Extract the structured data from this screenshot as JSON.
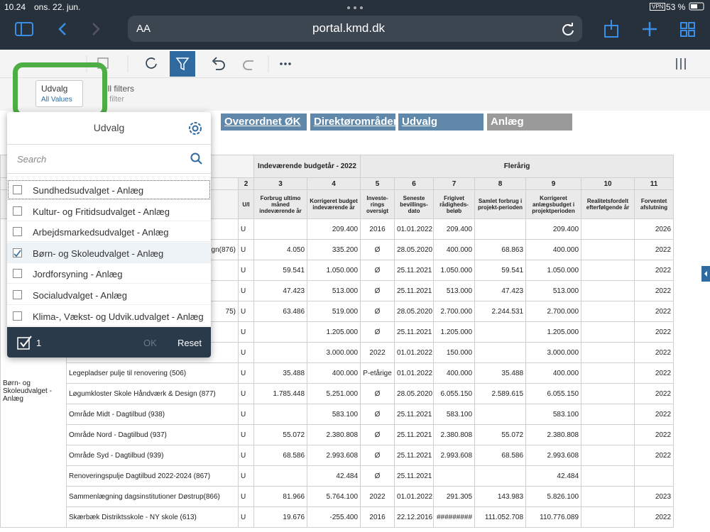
{
  "status": {
    "time": "10.24",
    "date": "ons. 22. jun.",
    "vpn": "VPN",
    "battery": "53 %"
  },
  "browser": {
    "text_size": "AA",
    "url": "portal.kmd.dk"
  },
  "toolbar": {
    "drill": "rill filters",
    "drop": "o filter"
  },
  "filter": {
    "label": "Udvalg",
    "value": "All Values"
  },
  "tabs": [
    "Overordnet ØK",
    "Direktørområder",
    "Udvalg",
    "Anlæg"
  ],
  "popup": {
    "title": "Udvalg",
    "search": "Search",
    "items": [
      {
        "label": "Sundhedsudvalget - Anlæg",
        "checked": false
      },
      {
        "label": "Kultur- og Fritidsudvalget - Anlæg",
        "checked": false
      },
      {
        "label": "Arbejdsmarkedsudvalget - Anlæg",
        "checked": false
      },
      {
        "label": "Børn- og Skoleudvalget - Anlæg",
        "checked": true
      },
      {
        "label": "Jordforsyning - Anlæg",
        "checked": false
      },
      {
        "label": "Socialudvalget - Anlæg",
        "checked": false
      },
      {
        "label": "Klima-, Vækst- og Udvik.udvalget - Anlæg",
        "checked": false
      }
    ],
    "count": "1",
    "ok": "OK",
    "reset": "Reset"
  },
  "table": {
    "groups": [
      "Indeværende budgetår - 2022",
      "Flerårig"
    ],
    "numbers": [
      2,
      3,
      4,
      5,
      6,
      7,
      8,
      9,
      10,
      11
    ],
    "headers": [
      "U/I",
      "Forbrug ultimo måned indeværende år",
      "Korrigeret budget indeværende år",
      "Investe-rings oversigt",
      "Seneste bevillings-dato",
      "Frigivet rådigheds-beløb",
      "Samlet forbrug i projekt-perioden",
      "Korrigeret anlægsbudget i projektperioden",
      "Realitetsfordelt efterfølgende år",
      "Forventet afslutning"
    ],
    "group_label": "Børn- og Skoleudvalget - Anlæg",
    "rows": [
      [
        null,
        "U",
        null,
        "209.400",
        "2016",
        "01.01.2022",
        "209.400",
        null,
        "209.400",
        null,
        "2026"
      ],
      [
        "gn(876)",
        "U",
        "4.050",
        "335.200",
        "Ø",
        "28.05.2020",
        "400.000",
        "68.863",
        "400.000",
        null,
        "2022"
      ],
      [
        null,
        "U",
        "59.541",
        "1.050.000",
        "Ø",
        "25.11.2021",
        "1.050.000",
        "59.541",
        "1.050.000",
        null,
        "2022"
      ],
      [
        null,
        "U",
        "47.423",
        "513.000",
        "Ø",
        "25.11.2021",
        "513.000",
        "47.423",
        "513.000",
        null,
        "2022"
      ],
      [
        "75)",
        "U",
        "63.486",
        "519.000",
        "Ø",
        "28.05.2020",
        "2.700.000",
        "2.244.531",
        "2.700.000",
        null,
        "2022"
      ],
      [
        null,
        "U",
        null,
        "1.205.000",
        "Ø",
        "25.11.2021",
        "1.205.000",
        null,
        "1.205.000",
        null,
        "2022"
      ],
      [
        null,
        "U",
        null,
        "3.000.000",
        "2022",
        "01.01.2022",
        "150.000",
        null,
        "3.000.000",
        null,
        "2022"
      ],
      [
        "Legepladser pulje til renovering (506)",
        "U",
        "35.488",
        "400.000",
        "P-etårige",
        "01.01.2022",
        "400.000",
        "35.488",
        "400.000",
        null,
        "2022"
      ],
      [
        "Løgumkloster Skole Håndværk & Design (877)",
        "U",
        "1.785.448",
        "5.251.000",
        "Ø",
        "28.05.2020",
        "6.055.150",
        "2.589.615",
        "6.055.150",
        null,
        "2022"
      ],
      [
        "Område Midt - Dagtilbud (938)",
        "U",
        null,
        "583.100",
        "Ø",
        "25.11.2021",
        "583.100",
        null,
        "583.100",
        null,
        "2022"
      ],
      [
        "Område Nord - Dagtilbud (937)",
        "U",
        "55.072",
        "2.380.808",
        "Ø",
        "25.11.2021",
        "2.380.808",
        "55.072",
        "2.380.808",
        null,
        "2022"
      ],
      [
        "Område Syd - Dagtilbud (939)",
        "U",
        "68.586",
        "2.993.608",
        "Ø",
        "25.11.2021",
        "2.993.608",
        "68.586",
        "2.993.608",
        null,
        "2022"
      ],
      [
        "Renoveringspulje Dagtilbud 2022-2024 (867)",
        "U",
        null,
        "42.484",
        "Ø",
        "25.11.2021",
        null,
        null,
        "42.484",
        null,
        null
      ],
      [
        "Sammenlægning dagsinstitutioner Døstrup(866)",
        "U",
        "81.966",
        "5.764.100",
        "2022",
        "01.01.2022",
        "291.305",
        "143.983",
        "5.826.100",
        null,
        "2023"
      ],
      [
        "Skærbæk Distriktsskole - NY skole (613)",
        "U",
        "19.676",
        "-255.400",
        "2016",
        "22.12.2016",
        "#########",
        "111.052.708",
        "110.776.089",
        null,
        "2022"
      ]
    ]
  }
}
